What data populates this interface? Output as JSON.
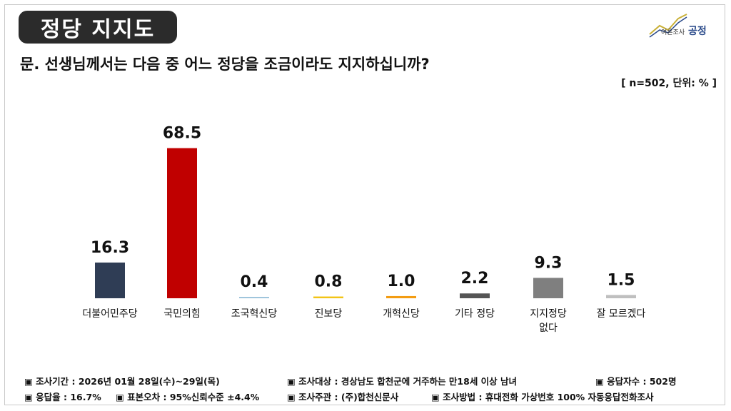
{
  "header": {
    "title": "정당 지지도",
    "logo_small": "여론조사",
    "logo_brand": "공정",
    "question": "문. 선생님께서는 다음 중 어느 정당을 조금이라도 지지하십니까?",
    "sample": "[ n=502, 단위: % ]"
  },
  "chart_data": {
    "type": "bar",
    "categories": [
      "더불어민주당",
      "국민의힘",
      "조국혁신당",
      "진보당",
      "개혁신당",
      "기타 정당",
      "지지정당 없다",
      "잘 모르겠다"
    ],
    "values": [
      16.3,
      68.5,
      0.4,
      0.8,
      1.0,
      2.2,
      9.3,
      1.5
    ],
    "value_labels": [
      "16.3",
      "68.5",
      "0.4",
      "0.8",
      "1.0",
      "2.2",
      "9.3",
      "1.5"
    ],
    "colors": [
      "#2f3d55",
      "#c00000",
      "#9fc5dc",
      "#f2c417",
      "#f39c12",
      "#555555",
      "#7f7f7f",
      "#bfbfbf"
    ],
    "ylim": [
      0,
      70
    ],
    "grid": false,
    "legend": "none"
  },
  "footer": {
    "row1": [
      "▣ 조사기간 : 2026년 01월 28일(수)~29일(목)",
      "▣ 조사대상 : 경상남도 합천군에 거주하는 만18세 이상 남녀",
      "▣ 응답자수 : 502명"
    ],
    "row2": [
      "▣ 응답율 : 16.7%",
      "▣ 표본오차 : 95%신뢰수준 ±4.4%",
      "▣ 조사주관 : (주)합천신문사",
      "▣ 조사방법 : 휴대전화 가상번호 100% 자동응답전화조사"
    ]
  }
}
